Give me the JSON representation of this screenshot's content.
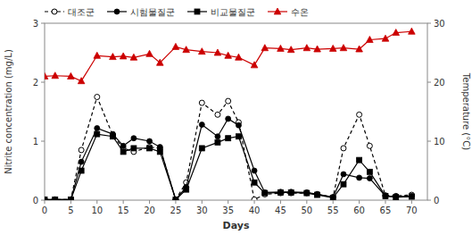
{
  "chart_data": {
    "type": "line",
    "x_label": "Days",
    "y_label": "Nitrite concentration  (mg/L)",
    "y2_label": "Temperature (°C)",
    "xlim": [
      0,
      73
    ],
    "xticks": [
      0,
      5,
      10,
      15,
      20,
      25,
      30,
      35,
      40,
      45,
      50,
      55,
      60,
      65,
      70
    ],
    "ylim": [
      0,
      3
    ],
    "yticks": [
      0,
      1,
      2,
      3
    ],
    "y2lim": [
      0,
      30
    ],
    "y2ticks": [
      0,
      10,
      20,
      30
    ],
    "legend": "upper left",
    "x": [
      0,
      2,
      5,
      7,
      10,
      13,
      15,
      17,
      20,
      22,
      25,
      27,
      30,
      33,
      35,
      37,
      40,
      42,
      45,
      47,
      50,
      52,
      55,
      57,
      60,
      62,
      65,
      67,
      70
    ],
    "series": [
      {
        "name": "대조군",
        "color": "black",
        "line_style": "dashed",
        "marker": "circle-open",
        "values": [
          0.01,
          0.01,
          0.01,
          0.85,
          1.75,
          1.1,
          0.88,
          0.82,
          0.9,
          0.88,
          0.01,
          0.3,
          1.65,
          1.45,
          1.68,
          1.32,
          0.01,
          0.1,
          0.12,
          0.12,
          0.12,
          0.1,
          0.05,
          0.88,
          1.45,
          0.92,
          0.08,
          0.07,
          0.09
        ]
      },
      {
        "name": "시험물질군",
        "color": "black",
        "line_style": "solid",
        "marker": "circle",
        "values": [
          0.01,
          0.01,
          0.01,
          0.65,
          1.22,
          1.12,
          0.92,
          1.05,
          1.0,
          0.9,
          0.01,
          0.22,
          1.28,
          1.08,
          1.38,
          1.27,
          0.5,
          0.13,
          0.14,
          0.14,
          0.13,
          0.1,
          0.05,
          0.44,
          0.38,
          0.37,
          0.07,
          0.06,
          0.07
        ]
      },
      {
        "name": "비교물질군",
        "color": "black",
        "line_style": "solid",
        "marker": "square",
        "values": [
          0.01,
          0.01,
          0.01,
          0.5,
          1.12,
          1.08,
          0.82,
          0.88,
          0.88,
          0.82,
          0.01,
          0.18,
          0.88,
          0.98,
          1.05,
          1.08,
          0.3,
          0.12,
          0.13,
          0.13,
          0.12,
          0.09,
          0.04,
          0.27,
          0.68,
          0.48,
          0.07,
          0.05,
          0.06
        ]
      },
      {
        "name": "수온",
        "color": "#cc0000",
        "line_style": "solid",
        "marker": "triangle",
        "axis": "y2",
        "values": [
          21.0,
          21.1,
          21.0,
          20.2,
          24.5,
          24.3,
          24.4,
          24.2,
          24.8,
          23.3,
          26.0,
          25.5,
          25.2,
          25.0,
          24.5,
          24.2,
          22.9,
          25.8,
          25.7,
          25.5,
          25.8,
          25.6,
          25.7,
          25.8,
          25.6,
          27.2,
          27.4,
          28.4,
          28.6
        ]
      }
    ]
  }
}
